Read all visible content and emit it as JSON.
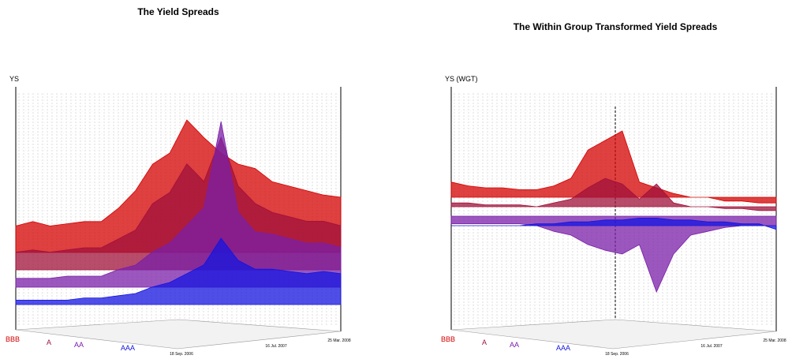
{
  "chart_data": [
    {
      "type": "surface3d",
      "title": "The Yield Spreads",
      "z_label": "YS",
      "time_labels": [
        "18 Sep. 2006",
        "16 Jul. 2007",
        "25 Mar. 2008"
      ],
      "zlim": [
        0,
        100
      ],
      "series": [
        {
          "name": "BBB",
          "color": "#d40000",
          "values": [
            12,
            14,
            12,
            13,
            14,
            14,
            20,
            28,
            40,
            45,
            60,
            52,
            45,
            40,
            38,
            32,
            30,
            28,
            26,
            25
          ]
        },
        {
          "name": "A",
          "color": "#a0103a",
          "values": [
            8,
            9,
            8,
            9,
            10,
            10,
            14,
            18,
            30,
            35,
            48,
            40,
            60,
            38,
            30,
            26,
            24,
            22,
            22,
            20
          ]
        },
        {
          "name": "AA",
          "color": "#7a1fa8",
          "values": [
            4,
            4,
            4,
            5,
            5,
            5,
            8,
            10,
            16,
            20,
            28,
            36,
            75,
            34,
            25,
            24,
            22,
            20,
            20,
            18
          ]
        },
        {
          "name": "AAA",
          "color": "#1414e0",
          "values": [
            2,
            2,
            2,
            2,
            3,
            3,
            4,
            5,
            8,
            10,
            14,
            18,
            30,
            20,
            16,
            16,
            15,
            14,
            15,
            14
          ]
        }
      ]
    },
    {
      "type": "surface3d",
      "title": "The Within Group Transformed Yield Spreads",
      "z_label": "YS (WGT)",
      "time_labels": [
        "18 Sep. 2006",
        "16 Jul. 2007",
        "25 Mar. 2008"
      ],
      "zlim": [
        -50,
        50
      ],
      "series": [
        {
          "name": "BBB",
          "color": "#d40000",
          "values": [
            8,
            6,
            5,
            5,
            4,
            4,
            6,
            10,
            25,
            30,
            35,
            8,
            5,
            2,
            0,
            0,
            -2,
            -2,
            -3,
            -3
          ]
        },
        {
          "name": "A",
          "color": "#a0103a",
          "values": [
            2,
            2,
            1,
            1,
            1,
            0,
            2,
            4,
            10,
            15,
            12,
            4,
            12,
            2,
            0,
            0,
            -1,
            -1,
            -2,
            -2
          ]
        },
        {
          "name": "AA",
          "color": "#7a1fa8",
          "values": [
            -4,
            -4,
            -4,
            -4,
            -4,
            -5,
            -8,
            -10,
            -15,
            -18,
            -20,
            -15,
            -40,
            -20,
            -10,
            -8,
            -6,
            -5,
            -5,
            -5
          ]
        },
        {
          "name": "AAA",
          "color": "#1414e0",
          "values": [
            0,
            0,
            0,
            0,
            0,
            1,
            1,
            2,
            2,
            3,
            3,
            4,
            4,
            3,
            3,
            2,
            2,
            1,
            1,
            -2
          ]
        }
      ]
    }
  ]
}
